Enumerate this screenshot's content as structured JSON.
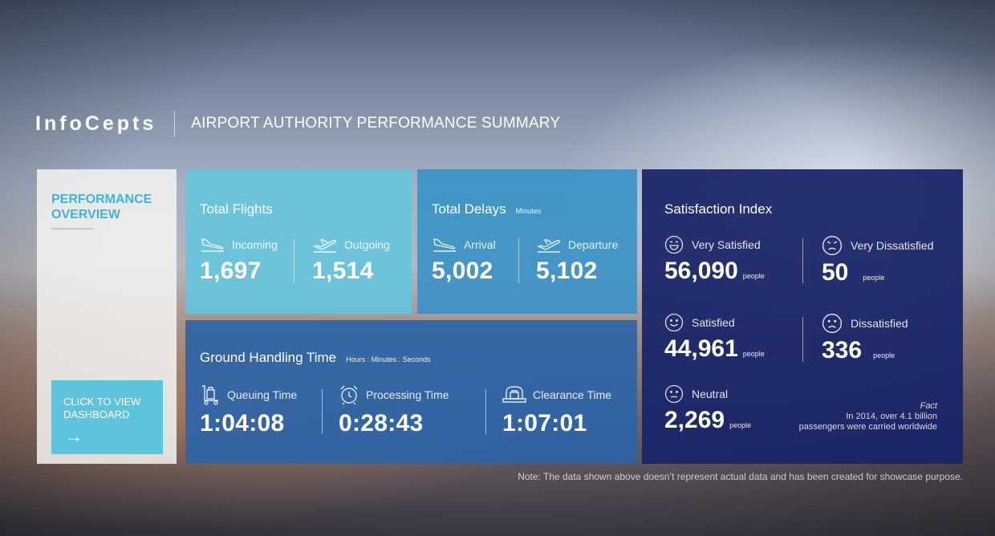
{
  "brand": {
    "logo": "InfoCepts",
    "title": "AIRPORT AUTHORITY PERFORMANCE SUMMARY"
  },
  "overview": {
    "title": "PERFORMANCE OVERVIEW",
    "button_label": "CLICK TO VIEW DASHBOARD",
    "button_icon": "arrow-right-icon"
  },
  "total_flights": {
    "title": "Total Flights",
    "incoming": {
      "label": "Incoming",
      "value": "1,697",
      "icon": "plane-landing-icon"
    },
    "outgoing": {
      "label": "Outgoing",
      "value": "1,514",
      "icon": "plane-takeoff-icon"
    }
  },
  "total_delays": {
    "title": "Total Delays",
    "unit": "Minutes",
    "arrival": {
      "label": "Arrival",
      "value": "5,002",
      "icon": "plane-landing-icon"
    },
    "departure": {
      "label": "Departure",
      "value": "5,102",
      "icon": "plane-takeoff-icon"
    }
  },
  "ground_handling": {
    "title": "Ground Handling Time",
    "unit": "Hours : Minutes : Seconds",
    "queuing": {
      "label": "Queuing Time",
      "value": "1:04:08",
      "icon": "luggage-trolley-icon"
    },
    "processing": {
      "label": "Processing Time",
      "value": "0:28:43",
      "icon": "alarm-clock-icon"
    },
    "clearance": {
      "label": "Clearance Time",
      "value": "1:07:01",
      "icon": "baggage-scanner-icon"
    }
  },
  "satisfaction": {
    "title": "Satisfaction Index",
    "unit": "people",
    "very_satisfied": {
      "label": "Very Satisfied",
      "value": "56,090",
      "icon": "grin-face-icon"
    },
    "very_dissatisfied": {
      "label": "Very Dissatisfied",
      "value": "50",
      "icon": "angry-face-icon"
    },
    "satisfied": {
      "label": "Satisfied",
      "value": "44,961",
      "icon": "smile-face-icon"
    },
    "dissatisfied": {
      "label": "Dissatisfied",
      "value": "336",
      "icon": "sad-face-icon"
    },
    "neutral": {
      "label": "Neutral",
      "value": "2,269",
      "icon": "neutral-face-icon"
    },
    "fact_title": "Fact",
    "fact_line1": "In 2014, over 4.1 billion",
    "fact_line2": "passengers were carried worldwide"
  },
  "note": "Note: The data shown above doesn’t represent actual data and has been created for showcase purpose.",
  "colors": {
    "accent": "#3fb4d6",
    "flights_tile": "#67c4dc",
    "delays_tile": "#3c92c8",
    "ground_tile": "#2c64a8",
    "satisfaction_tile": "#192468",
    "button": "#5cc4dd"
  }
}
